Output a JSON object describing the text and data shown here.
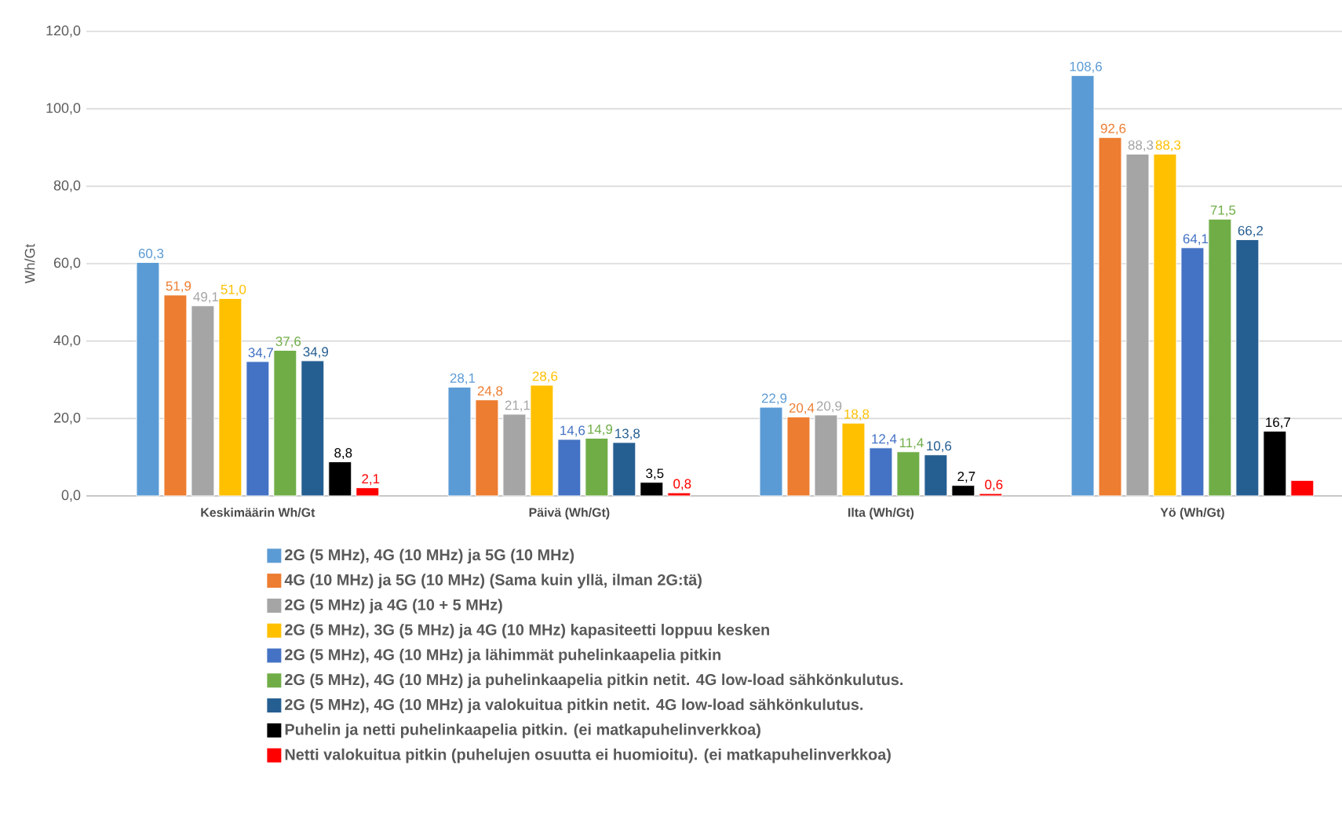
{
  "chart_data": {
    "type": "bar",
    "ylabel": "Wh/Gt",
    "categories": [
      "Keskimäärin Wh/Gt",
      "Päivä (Wh/Gt)",
      "Ilta (Wh/Gt)",
      "Yö (Wh/Gt)"
    ],
    "ylim": [
      0,
      120
    ],
    "yticks": [
      {
        "value": 0,
        "label": "0,0"
      },
      {
        "value": 20,
        "label": "20,0"
      },
      {
        "value": 40,
        "label": "40,0"
      },
      {
        "value": 60,
        "label": "60,0"
      },
      {
        "value": 80,
        "label": "80,0"
      },
      {
        "value": 100,
        "label": "100,0"
      },
      {
        "value": 120,
        "label": "120,0"
      }
    ],
    "grid": "y",
    "legend": "bottom",
    "series": [
      {
        "name": "2G (5 MHz), 4G (10 MHz) ja 5G (10 MHz)",
        "color": "#5b9bd5",
        "values": [
          60.3,
          28.1,
          22.9,
          108.6
        ],
        "value_labels": [
          "60,3",
          "28,1",
          "22,9",
          "108,6"
        ]
      },
      {
        "name": "4G (10 MHz) ja 5G (10 MHz) (Sama kuin yllä, ilman 2G:tä)",
        "color": "#ed7d31",
        "values": [
          51.9,
          24.8,
          20.4,
          92.6
        ],
        "value_labels": [
          "51,9",
          "24,8",
          "20,4",
          "92,6"
        ]
      },
      {
        "name": "2G (5 MHz) ja 4G (10 + 5 MHz)",
        "color": "#a5a5a5",
        "values": [
          49.1,
          21.1,
          20.9,
          88.3
        ],
        "value_labels": [
          "49,1",
          "21,1",
          "20,9",
          "88,3"
        ]
      },
      {
        "name": "2G  (5 MHz), 3G (5 MHz) ja 4G  (10 MHz) kapasiteetti loppuu kesken",
        "color": "#ffc000",
        "values": [
          51.0,
          28.6,
          18.8,
          88.3
        ],
        "value_labels": [
          "51,0",
          "28,6",
          "18,8",
          "88,3"
        ]
      },
      {
        "name": "2G (5 MHz), 4G (10 MHz) ja lähimmät puhelinkaapelia pitkin",
        "color": "#4472c4",
        "values": [
          34.7,
          14.6,
          12.4,
          64.1
        ],
        "value_labels": [
          "34,7",
          "14,6",
          "12,4",
          "64,1"
        ]
      },
      {
        "name": "2G (5 MHz), 4G (10 MHz) ja puhelinkaapelia pitkin netit. 4G low-load sähkönkulutus.",
        "color": "#70ad47",
        "values": [
          37.6,
          14.9,
          11.4,
          71.5
        ],
        "value_labels": [
          "37,6",
          "14,9",
          "11,4",
          "71,5"
        ]
      },
      {
        "name": "2G (5 MHz), 4G (10 MHz) ja valokuitua pitkin netit. 4G low-load sähkönkulutus.",
        "color": "#255e91",
        "values": [
          34.9,
          13.8,
          10.6,
          66.2
        ],
        "value_labels": [
          "34,9",
          "13,8",
          "10,6",
          "66,2"
        ]
      },
      {
        "name": "Puhelin ja netti puhelinkaapelia pitkin. (ei matkapuhelinverkkoa)",
        "color": "#000000",
        "values": [
          8.8,
          3.5,
          2.7,
          16.7
        ],
        "value_labels": [
          "8,8",
          "3,5",
          "2,7",
          "16,7"
        ]
      },
      {
        "name": "Netti valokuitua pitkin (puhelujen osuutta ei huomioitu). (ei matkapuhelinverkkoa)",
        "color": "#ff0000",
        "values": [
          2.1,
          0.8,
          0.6,
          4.0
        ],
        "value_labels": [
          "2,1",
          "0,8",
          "0,6",
          null
        ]
      }
    ]
  }
}
